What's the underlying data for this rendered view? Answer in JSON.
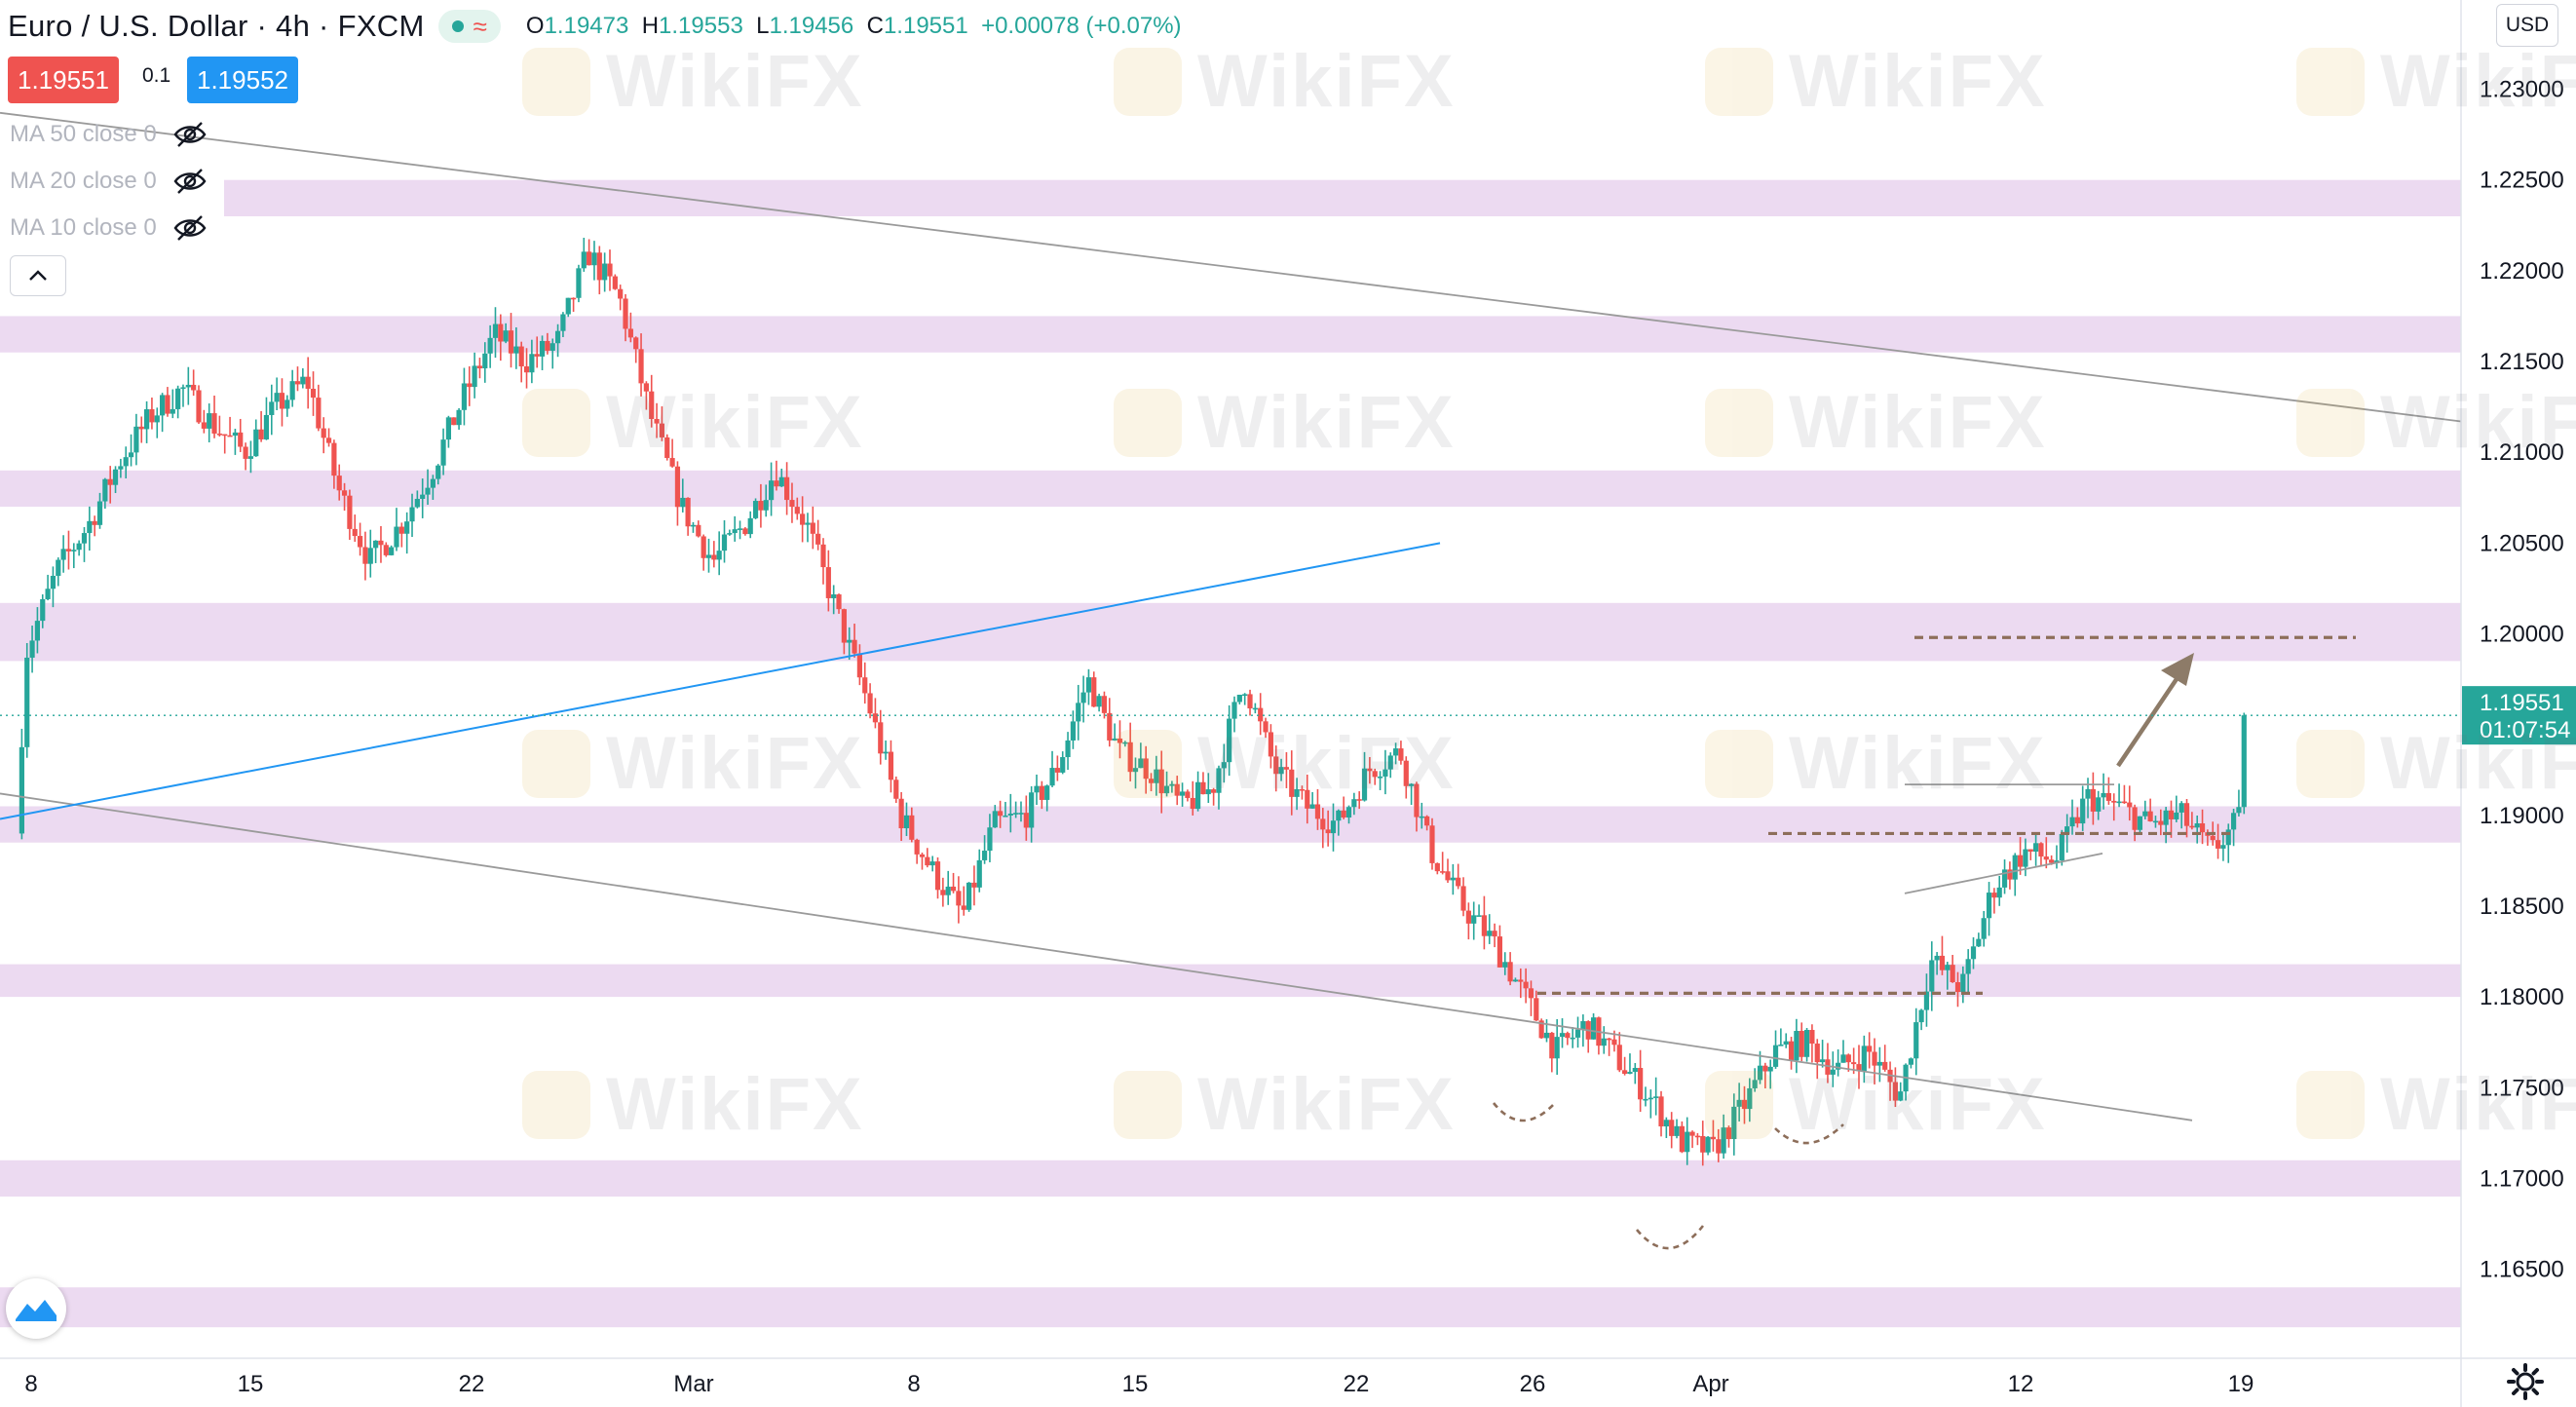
{
  "header": {
    "symbol": "Euro / U.S. Dollar",
    "interval": "4h",
    "exchange": "FXCM",
    "ohlc": {
      "open_label": "O",
      "open": "1.19473",
      "high_label": "H",
      "high": "1.19553",
      "low_label": "L",
      "low": "1.19456",
      "close_label": "C",
      "close": "1.19551",
      "change": "+0.00078 (+0.07%)"
    }
  },
  "trade": {
    "sell_price": "1.19551",
    "spread": "0.1",
    "buy_price": "1.19552",
    "sell_color": "#ef5350",
    "buy_color": "#2196f3"
  },
  "indicators": [
    {
      "label": "MA 50 close 0",
      "icon": "eye-hidden-icon"
    },
    {
      "label": "MA 20 close 0",
      "icon": "eye-hidden-icon"
    },
    {
      "label": "MA 10 close 0",
      "icon": "eye-hidden-icon"
    }
  ],
  "currency_button": "USD",
  "watermark_text": "WikiFX",
  "colors": {
    "up": "#26a69a",
    "down": "#ef5350",
    "zone": "#e9d3ee",
    "trendline": "#9a9a9a",
    "blue_line": "#2196f3",
    "pattern": "#8d6e5a",
    "arrow": "#8d7b68"
  },
  "chart_data": {
    "type": "candlestick",
    "instrument": "EUR/USD",
    "interval": "4h",
    "ylim": [
      1.1602,
      1.2347
    ],
    "y_ticks": [
      "1.23000",
      "1.22500",
      "1.22000",
      "1.21500",
      "1.21000",
      "1.20500",
      "1.20000",
      "1.19500",
      "1.19000",
      "1.18500",
      "1.18000",
      "1.17500",
      "1.17000",
      "1.16500"
    ],
    "x_ticks": [
      "8",
      "15",
      "22",
      "Mar",
      "8",
      "15",
      "22",
      "26",
      "Apr",
      "12",
      "19"
    ],
    "last_price": "1.19551",
    "countdown": "01:07:54",
    "anchors": [
      {
        "d": -0.3,
        "p": 1.189
      },
      {
        "d": 0,
        "p": 1.199
      },
      {
        "d": 1,
        "p": 1.2035
      },
      {
        "d": 2,
        "p": 1.206
      },
      {
        "d": 3,
        "p": 1.2095
      },
      {
        "d": 4,
        "p": 1.212
      },
      {
        "d": 5,
        "p": 1.2135
      },
      {
        "d": 6,
        "p": 1.2115
      },
      {
        "d": 7,
        "p": 1.21
      },
      {
        "d": 8,
        "p": 1.2125
      },
      {
        "d": 9,
        "p": 1.214
      },
      {
        "d": 10,
        "p": 1.208
      },
      {
        "d": 11,
        "p": 1.204
      },
      {
        "d": 12,
        "p": 1.206
      },
      {
        "d": 13,
        "p": 1.209
      },
      {
        "d": 14,
        "p": 1.213
      },
      {
        "d": 15,
        "p": 1.2165
      },
      {
        "d": 16,
        "p": 1.215
      },
      {
        "d": 17,
        "p": 1.216
      },
      {
        "d": 18,
        "p": 1.221
      },
      {
        "d": 19,
        "p": 1.2185
      },
      {
        "d": 20,
        "p": 1.212
      },
      {
        "d": 21,
        "p": 1.207
      },
      {
        "d": 22,
        "p": 1.204
      },
      {
        "d": 23,
        "p": 1.206
      },
      {
        "d": 24,
        "p": 1.209
      },
      {
        "d": 25,
        "p": 1.206
      },
      {
        "d": 26,
        "p": 1.201
      },
      {
        "d": 27,
        "p": 1.196
      },
      {
        "d": 28,
        "p": 1.19
      },
      {
        "d": 29,
        "p": 1.187
      },
      {
        "d": 30,
        "p": 1.1845
      },
      {
        "d": 31,
        "p": 1.1895
      },
      {
        "d": 32,
        "p": 1.19
      },
      {
        "d": 33,
        "p": 1.1925
      },
      {
        "d": 34,
        "p": 1.1975
      },
      {
        "d": 35,
        "p": 1.1935
      },
      {
        "d": 36,
        "p": 1.1925
      },
      {
        "d": 37,
        "p": 1.1905
      },
      {
        "d": 38,
        "p": 1.1915
      },
      {
        "d": 39,
        "p": 1.1975
      },
      {
        "d": 40,
        "p": 1.1925
      },
      {
        "d": 41,
        "p": 1.1905
      },
      {
        "d": 42,
        "p": 1.1895
      },
      {
        "d": 43,
        "p": 1.1925
      },
      {
        "d": 44,
        "p": 1.1935
      },
      {
        "d": 45,
        "p": 1.188
      },
      {
        "d": 46,
        "p": 1.185
      },
      {
        "d": 47,
        "p": 1.183
      },
      {
        "d": 48,
        "p": 1.18
      },
      {
        "d": 49,
        "p": 1.177
      },
      {
        "d": 50,
        "p": 1.1785
      },
      {
        "d": 51,
        "p": 1.1765
      },
      {
        "d": 52,
        "p": 1.1745
      },
      {
        "d": 53,
        "p": 1.172
      },
      {
        "d": 54,
        "p": 1.1715
      },
      {
        "d": 55,
        "p": 1.174
      },
      {
        "d": 56,
        "p": 1.177
      },
      {
        "d": 57,
        "p": 1.1775
      },
      {
        "d": 58,
        "p": 1.176
      },
      {
        "d": 59,
        "p": 1.177
      },
      {
        "d": 60,
        "p": 1.1745
      },
      {
        "d": 61,
        "p": 1.182
      },
      {
        "d": 62,
        "p": 1.1805
      },
      {
        "d": 63,
        "p": 1.186
      },
      {
        "d": 64,
        "p": 1.188
      },
      {
        "d": 65,
        "p": 1.1875
      },
      {
        "d": 66,
        "p": 1.191
      },
      {
        "d": 67,
        "p": 1.1905
      },
      {
        "d": 68,
        "p": 1.1895
      },
      {
        "d": 69,
        "p": 1.19
      },
      {
        "d": 70,
        "p": 1.188
      },
      {
        "d": 71,
        "p": 1.19
      },
      {
        "d": 71.3,
        "p": 1.1955
      }
    ],
    "support_resistance_zones": [
      [
        1.223,
        1.225
      ],
      [
        1.2155,
        1.2175
      ],
      [
        1.207,
        1.209
      ],
      [
        1.1985,
        1.2017
      ],
      [
        1.1885,
        1.1905
      ],
      [
        1.18,
        1.1818
      ],
      [
        1.169,
        1.171
      ],
      [
        1.1618,
        1.164
      ]
    ],
    "resistance_level": 1.1998,
    "breakout_level": 1.189,
    "neckline": 1.1802
  }
}
